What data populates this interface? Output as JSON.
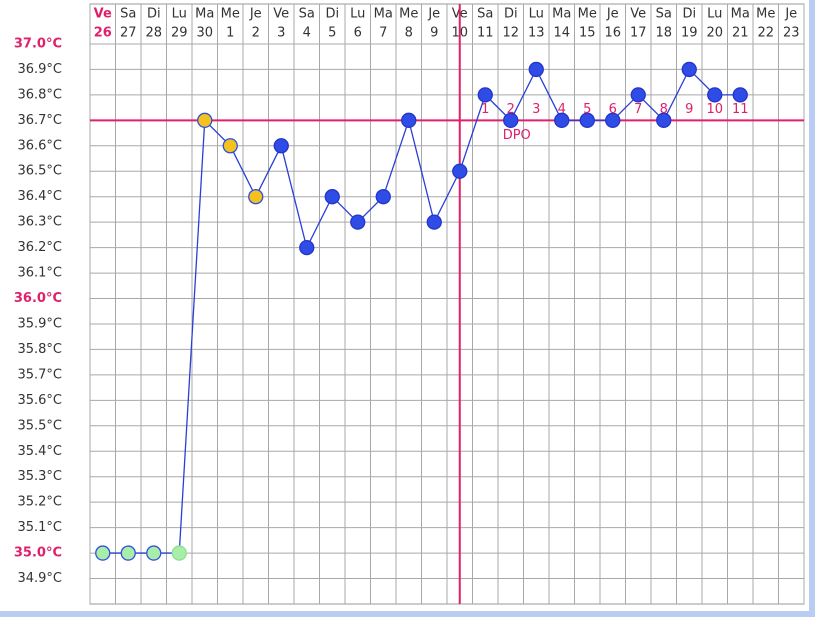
{
  "chart_data": {
    "type": "line",
    "weekdays": [
      "Ve",
      "Sa",
      "Di",
      "Lu",
      "Ma",
      "Me",
      "Je",
      "Ve",
      "Sa",
      "Di",
      "Lu",
      "Ma",
      "Me",
      "Je",
      "Ve",
      "Sa",
      "Di",
      "Lu",
      "Ma",
      "Me",
      "Je",
      "Ve",
      "Sa",
      "Di",
      "Lu",
      "Ma",
      "Me",
      "Je"
    ],
    "categories": [
      "26",
      "27",
      "28",
      "29",
      "30",
      "1",
      "2",
      "3",
      "4",
      "5",
      "6",
      "7",
      "8",
      "9",
      "10",
      "11",
      "12",
      "13",
      "14",
      "15",
      "16",
      "17",
      "18",
      "19",
      "20",
      "21",
      "22",
      "23"
    ],
    "series": [
      {
        "color": "#2b3fd6",
        "values": [
          35.0,
          35.0,
          35.0,
          35.0,
          36.7,
          36.6,
          36.4,
          36.6,
          36.2,
          36.4,
          36.3,
          36.4,
          36.7,
          36.3,
          36.5,
          36.8,
          36.7,
          36.9,
          36.7,
          36.7,
          36.7,
          36.8,
          36.7,
          36.9,
          36.8,
          36.8,
          null,
          null
        ],
        "point_fill": [
          "#a8eea8",
          "#a8eea8",
          "#a8eea8",
          "#a8eea8",
          "#f3c21f",
          "#f3c21f",
          "#f3c21f",
          "#2f4de6",
          "#2f4de6",
          "#2f4de6",
          "#2f4de6",
          "#2f4de6",
          "#2f4de6",
          "#2f4de6",
          "#2f4de6",
          "#2f4de6",
          "#2f4de6",
          "#2f4de6",
          "#2f4de6",
          "#2f4de6",
          "#2f4de6",
          "#2f4de6",
          "#2f4de6",
          "#2f4de6",
          "#2f4de6",
          "#2f4de6",
          null,
          null
        ],
        "point_stroke": [
          "#3050e0",
          "#3050e0",
          "#3050e0",
          "#8ee08e",
          "#3050e0",
          "#3050e0",
          "#3050e0",
          "#2236c8",
          "#2236c8",
          "#2236c8",
          "#2236c8",
          "#2236c8",
          "#2236c8",
          "#2236c8",
          "#2236c8",
          "#2236c8",
          "#2236c8",
          "#2236c8",
          "#2236c8",
          "#2236c8",
          "#2236c8",
          "#2236c8",
          "#2236c8",
          "#2236c8",
          "#2236c8",
          "#2236c8",
          null,
          null
        ]
      }
    ],
    "dpo_labels": [
      null,
      null,
      null,
      null,
      null,
      null,
      null,
      null,
      null,
      null,
      null,
      null,
      null,
      null,
      null,
      1,
      2,
      3,
      4,
      5,
      6,
      7,
      8,
      9,
      10,
      11,
      null,
      null
    ],
    "dpo_title": "DPO",
    "cover_line": 36.7,
    "ovulation_day": "10",
    "marker_color": "#e0206a",
    "ylim": [
      34.8,
      37.1
    ],
    "yticks": [
      {
        "value": 37.0,
        "label": "37.0°C"
      },
      {
        "value": 36.9,
        "label": "36.9°C"
      },
      {
        "value": 36.8,
        "label": "36.8°C"
      },
      {
        "value": 36.7,
        "label": "36.7°C"
      },
      {
        "value": 36.6,
        "label": "36.6°C"
      },
      {
        "value": 36.5,
        "label": "36.5°C"
      },
      {
        "value": 36.4,
        "label": "36.4°C"
      },
      {
        "value": 36.3,
        "label": "36.3°C"
      },
      {
        "value": 36.2,
        "label": "36.2°C"
      },
      {
        "value": 36.1,
        "label": "36.1°C"
      },
      {
        "value": 36.0,
        "label": "36.0°C"
      },
      {
        "value": 35.9,
        "label": "35.9°C"
      },
      {
        "value": 35.8,
        "label": "35.8°C"
      },
      {
        "value": 35.7,
        "label": "35.7°C"
      },
      {
        "value": 35.6,
        "label": "35.6°C"
      },
      {
        "value": 35.5,
        "label": "35.5°C"
      },
      {
        "value": 35.4,
        "label": "35.4°C"
      },
      {
        "value": 35.3,
        "label": "35.3°C"
      },
      {
        "value": 35.2,
        "label": "35.2°C"
      },
      {
        "value": 35.1,
        "label": "35.1°C"
      },
      {
        "value": 35.0,
        "label": "35.0°C"
      },
      {
        "value": 34.9,
        "label": "34.9°C"
      }
    ],
    "grid": true
  }
}
